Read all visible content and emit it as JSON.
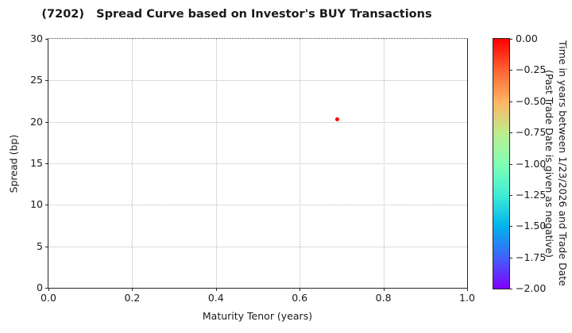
{
  "chart_data": {
    "type": "scatter",
    "title": "(7202)   Spread Curve based on Investor's BUY Transactions",
    "xlabel": "Maturity Tenor (years)",
    "ylabel": "Spread (bp)",
    "xlim": [
      0.0,
      1.0
    ],
    "ylim": [
      0,
      30
    ],
    "grid": true,
    "x_tick_values": [
      0.0,
      0.2,
      0.4,
      0.6,
      0.8,
      1.0
    ],
    "x_tick_labels": [
      "0.0",
      "0.2",
      "0.4",
      "0.6",
      "0.8",
      "1.0"
    ],
    "y_tick_values": [
      0,
      5,
      10,
      15,
      20,
      25,
      30
    ],
    "y_tick_labels": [
      "0",
      "5",
      "10",
      "15",
      "20",
      "25",
      "30"
    ],
    "points": [
      {
        "x": 0.69,
        "y": 20.3,
        "color_value": 0.0,
        "color": "#ff0000"
      }
    ],
    "colorbar": {
      "label_line1": "Time in years between 1/23/2026 and Trade Date",
      "label_line2": "(Past Trade Date is given as negative)",
      "range": [
        0.0,
        -2.0
      ],
      "tick_values": [
        0.0,
        -0.25,
        -0.5,
        -0.75,
        -1.0,
        -1.25,
        -1.5,
        -1.75,
        -2.0
      ],
      "tick_labels": [
        "0.00",
        "−0.25",
        "−0.50",
        "−0.75",
        "−1.00",
        "−1.25",
        "−1.50",
        "−1.75",
        "−2.00"
      ],
      "colormap": "rainbow-reversed",
      "gradient": [
        "#ff0000",
        "#ff6232",
        "#ffb462",
        "#bfec8e",
        "#80ffb4",
        "#40ecd4",
        "#00b4ec",
        "#4062fa",
        "#8000ff"
      ]
    }
  }
}
